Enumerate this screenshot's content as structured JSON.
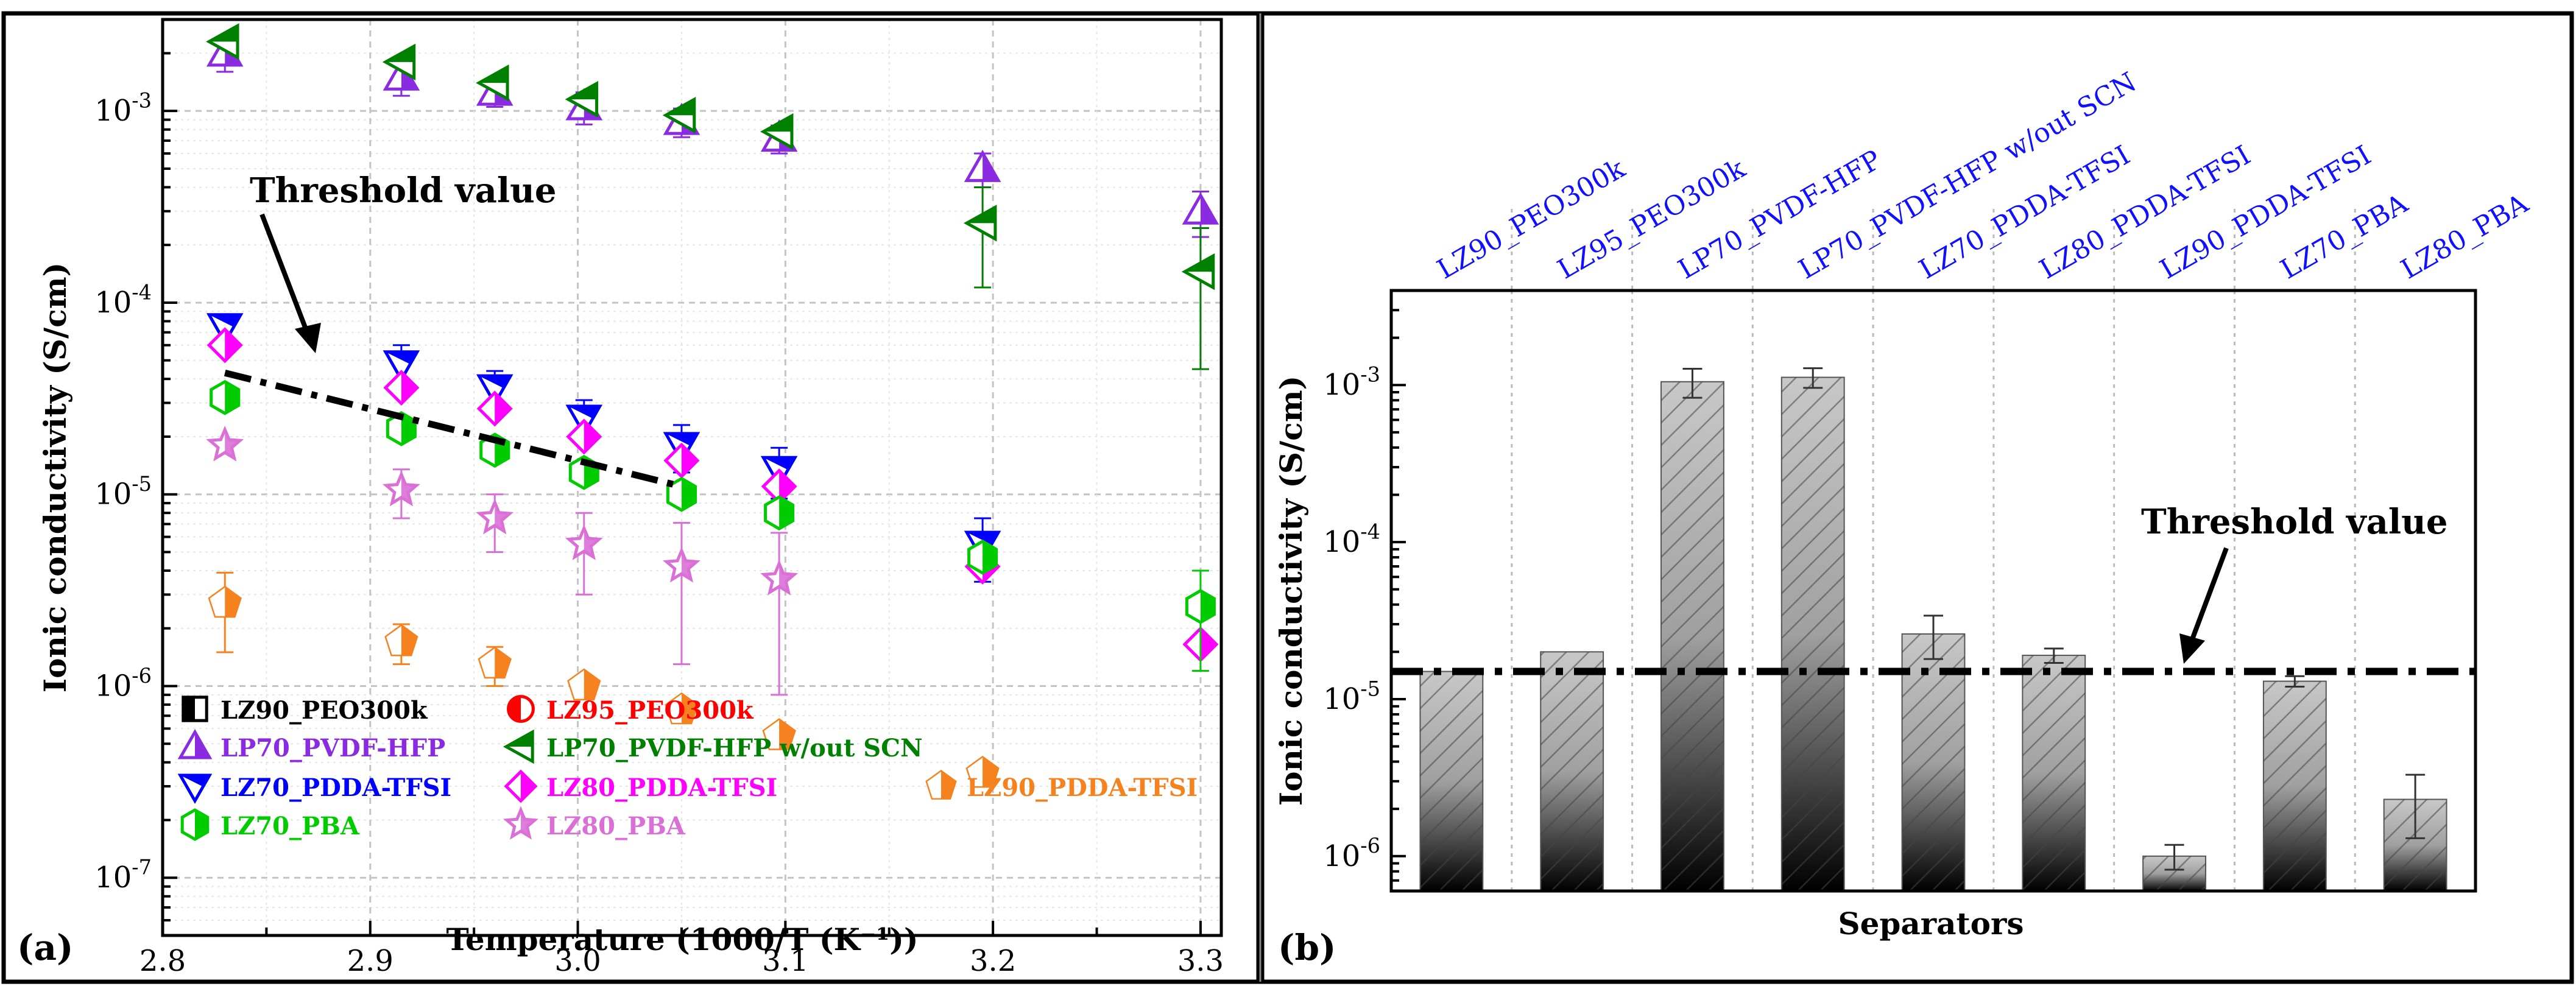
{
  "panel_labels": {
    "a": "(a)",
    "b": "(b)"
  },
  "threshold_label_a": "Threshold value",
  "threshold_label_b": "Threshold value",
  "chart_data": [
    {
      "id": "a",
      "type": "scatter",
      "xscale": "linear",
      "yscale": "log",
      "xlabel": "Temperature (1000/T (K⁻¹))",
      "ylabel": "Ionic conductivity (S/cm)",
      "xlim": [
        2.8,
        3.31
      ],
      "ylim": [
        5e-08,
        0.003
      ],
      "xticks": [
        2.8,
        2.9,
        3.0,
        3.1,
        3.2,
        3.3
      ],
      "xtick_labels": [
        "2.8",
        "2.9",
        "3.0",
        "3.1",
        "3.2",
        "3.3"
      ],
      "ytick_exponents": [
        -7,
        -6,
        -5,
        -4,
        -3
      ],
      "threshold_line": {
        "x": [
          2.83,
          3.05
        ],
        "y": [
          4.3e-05,
          1.1e-05
        ]
      },
      "series": [
        {
          "name": "LZ90_PEO300k",
          "color": "#000000",
          "marker": "square-half",
          "x": [],
          "y": []
        },
        {
          "name": "LZ95_PEO300k",
          "color": "#ff0000",
          "marker": "circle-half",
          "x": [],
          "y": []
        },
        {
          "name": "LP70_PVDF-HFP",
          "color": "#8a2be2",
          "marker": "triangle-up",
          "x": [
            2.83,
            2.915,
            2.96,
            3.003,
            3.05,
            3.097,
            3.195,
            3.3
          ],
          "y": [
            0.002,
            0.0015,
            0.00125,
            0.00105,
            0.00088,
            0.00072,
            0.0005,
            0.0003
          ],
          "err": [
            0.0004,
            0.0003,
            0.0002,
            0.0002,
            0.00015,
            0.00012,
            0.0001,
            8e-05
          ]
        },
        {
          "name": "LP70_PVDF-HFP w/out SCN",
          "color": "#008000",
          "marker": "triangle-left",
          "x": [
            2.83,
            2.915,
            2.96,
            3.003,
            3.05,
            3.097,
            3.195,
            3.3
          ],
          "y": [
            0.0023,
            0.0018,
            0.0014,
            0.00115,
            0.00095,
            0.00078,
            0.00026,
            0.000145
          ],
          "err": [
            0,
            0,
            0,
            0,
            0,
            0,
            0.00014,
            0.0001
          ]
        },
        {
          "name": "LZ70_PDDA-TFSI",
          "color": "#0000ff",
          "marker": "triangle-down",
          "x": [
            2.83,
            2.915,
            2.96,
            3.003,
            3.05,
            3.097,
            3.195
          ],
          "y": [
            7.5e-05,
            4.8e-05,
            3.6e-05,
            2.5e-05,
            1.8e-05,
            1.35e-05,
            5.5e-06
          ],
          "err": [
            0,
            1.2e-05,
            8e-06,
            6e-06,
            5e-06,
            4e-06,
            2e-06
          ]
        },
        {
          "name": "LZ80_PDDA-TFSI",
          "color": "#ff00ff",
          "marker": "diamond-half",
          "x": [
            2.83,
            2.915,
            2.96,
            3.003,
            3.05,
            3.097,
            3.195,
            3.3
          ],
          "y": [
            6e-05,
            3.6e-05,
            2.8e-05,
            2e-05,
            1.5e-05,
            1.1e-05,
            4.2e-06,
            1.65e-06
          ],
          "err": [
            0,
            0,
            0,
            0,
            0,
            0,
            0,
            0
          ]
        },
        {
          "name": "LZ90_PDDA-TFSI",
          "color": "#f5821f",
          "marker": "pentagon-half",
          "x": [
            2.83,
            2.915,
            2.96,
            3.003,
            3.05,
            3.097,
            3.195
          ],
          "y": [
            2.7e-06,
            1.7e-06,
            1.3e-06,
            1e-06,
            7.5e-07,
            5.5e-07,
            3.5e-07
          ],
          "err": [
            1.2e-06,
            4e-07,
            3e-07,
            0,
            0,
            0,
            0
          ]
        },
        {
          "name": "LZ70_PBA",
          "color": "#00cc00",
          "marker": "hexagon-half",
          "x": [
            2.83,
            2.915,
            2.96,
            3.003,
            3.05,
            3.097,
            3.195,
            3.3
          ],
          "y": [
            3.2e-05,
            2.2e-05,
            1.7e-05,
            1.3e-05,
            1e-05,
            8e-06,
            4.7e-06,
            2.6e-06
          ],
          "err": [
            0,
            0,
            0,
            0,
            0,
            0,
            0,
            1.4e-06
          ]
        },
        {
          "name": "LZ80_PBA",
          "color": "#da70d6",
          "marker": "star",
          "x": [
            2.83,
            2.915,
            2.96,
            3.003,
            3.05,
            3.097
          ],
          "y": [
            1.8e-05,
            1.05e-05,
            7.5e-06,
            5.5e-06,
            4.2e-06,
            3.6e-06
          ],
          "err": [
            0,
            3e-06,
            2.5e-06,
            2.5e-06,
            2.9e-06,
            2.7e-06
          ]
        }
      ]
    },
    {
      "id": "b",
      "type": "bar",
      "yscale": "log",
      "xlabel": "Separators",
      "ylabel": "Ionic conductivity (S/cm)",
      "ylim": [
        6e-07,
        0.004
      ],
      "ytick_exponents": [
        -6,
        -5,
        -4,
        -3
      ],
      "threshold": 1.5e-05,
      "categories": [
        "LZ90_PEO300k",
        "LZ95_PEO300k",
        "LP70_PVDF-HFP",
        "LP70_PVDF-HFP w/out SCN",
        "LZ70_PDDA-TFSI",
        "LZ80_PDDA-TFSI",
        "LZ90_PDDA-TFSI",
        "LZ70_PBA",
        "LZ80_PBA"
      ],
      "values": [
        1.5e-05,
        2e-05,
        0.00105,
        0.00112,
        2.6e-05,
        1.9e-05,
        1e-06,
        1.3e-05,
        2.3e-06
      ],
      "errors": [
        0,
        0,
        0.00022,
        0.00016,
        8e-06,
        2e-06,
        1.8e-07,
        1e-06,
        1e-06
      ]
    }
  ]
}
